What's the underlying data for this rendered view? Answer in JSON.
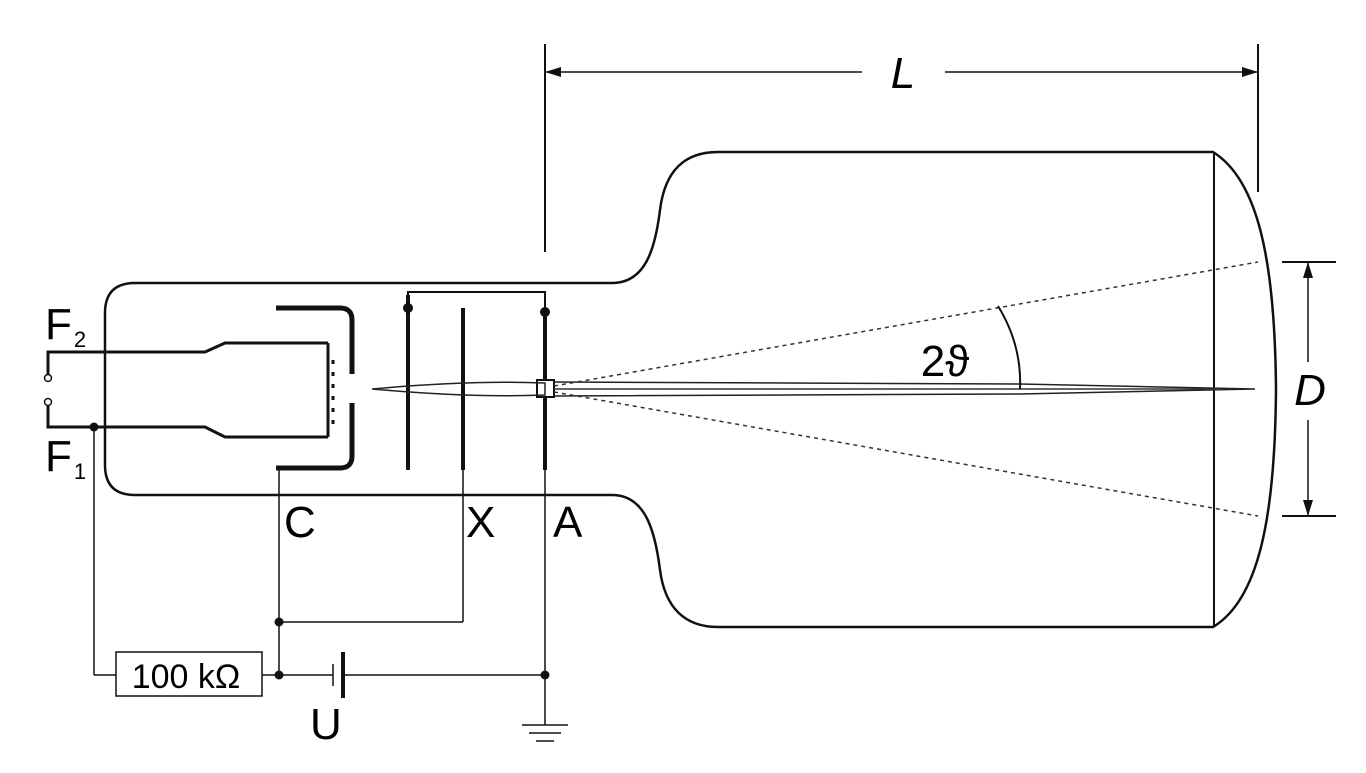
{
  "labels": {
    "length": "L",
    "diameter": "D",
    "angle": "2ϑ",
    "filament_2": "F",
    "filament_2_sub": "2",
    "filament_1": "F",
    "filament_1_sub": "1",
    "cathode": "C",
    "grid": "X",
    "anode": "A",
    "voltage": "U",
    "resistor": "100 kΩ"
  },
  "colors": {
    "stroke": "#111111",
    "background": "#ffffff"
  }
}
